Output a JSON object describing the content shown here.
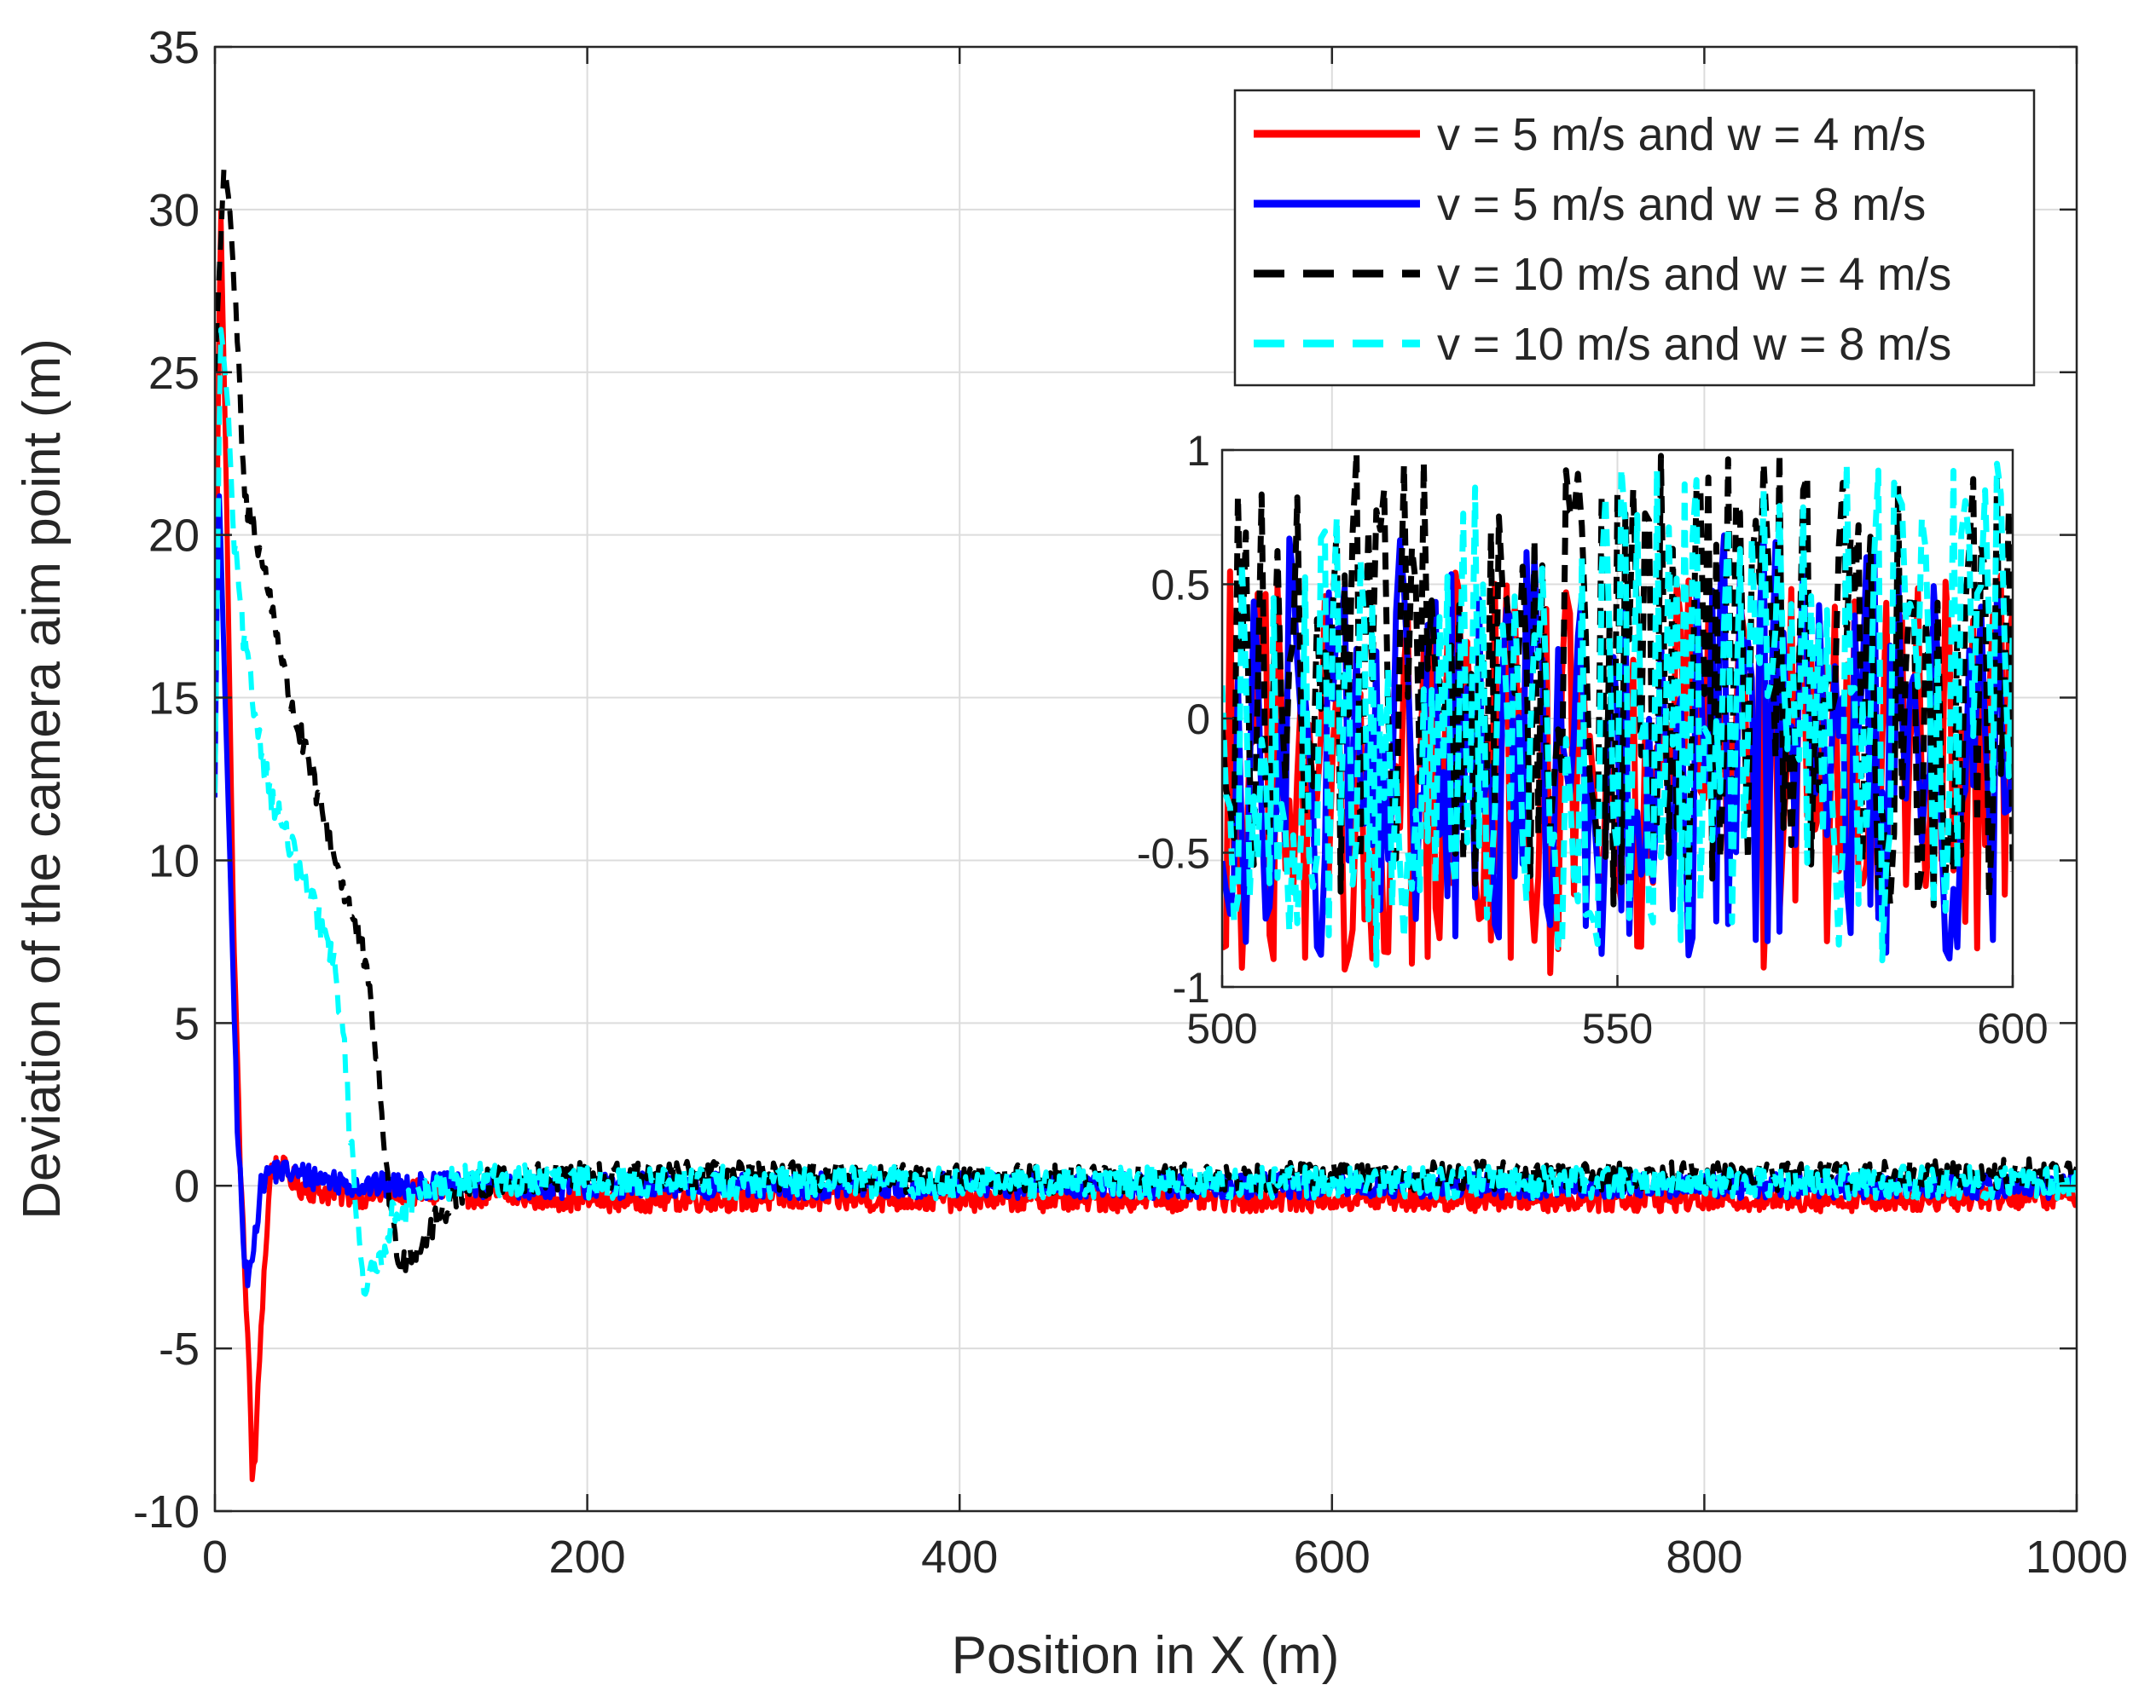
{
  "chart_data": [
    {
      "type": "line",
      "role": "main",
      "xlabel": "Position in X (m)",
      "ylabel": "Deviation of the camera aim point (m)",
      "xlim": [
        0,
        1000
      ],
      "ylim": [
        -10,
        35
      ],
      "xticks": [
        0,
        200,
        400,
        600,
        800,
        1000
      ],
      "yticks": [
        -10,
        -5,
        0,
        5,
        10,
        15,
        20,
        25,
        30,
        35
      ],
      "grid": true,
      "legend_position": "top-right",
      "series": [
        {
          "name": "v = 5 m/s and w = 4 m/s",
          "color": "#ff0000",
          "style": "solid",
          "x": [
            0,
            3,
            6,
            10,
            14,
            18,
            20,
            22,
            25,
            30,
            35,
            45,
            60,
            80,
            100,
            150,
            200,
            300,
            400,
            500,
            600,
            700,
            800,
            900,
            1000
          ],
          "y": [
            14,
            30.5,
            22,
            8,
            0,
            -5,
            -9,
            -8,
            -4,
            0.5,
            0.6,
            0,
            -0.2,
            -0.3,
            -0.2,
            -0.3,
            -0.4,
            -0.4,
            -0.4,
            -0.4,
            -0.4,
            -0.4,
            -0.4,
            -0.4,
            -0.3
          ],
          "noise": 0.4
        },
        {
          "name": "v = 5 m/s and w = 8 m/s",
          "color": "#0000ff",
          "style": "solid",
          "x": [
            0,
            2,
            5,
            8,
            12,
            16,
            18,
            20,
            25,
            30,
            40,
            60,
            80,
            100,
            150,
            200,
            300,
            400,
            500,
            600,
            700,
            800,
            900,
            1000
          ],
          "y": [
            12,
            22,
            16,
            10,
            2,
            -2.5,
            -3,
            -2,
            0,
            0.5,
            0.4,
            0.2,
            0,
            0,
            0,
            0,
            0,
            0,
            0,
            0,
            0,
            0,
            0,
            0
          ],
          "noise": 0.4
        },
        {
          "name": "v = 10 m/s and w = 4 m/s",
          "color": "#000000",
          "style": "dashed",
          "x": [
            0,
            5,
            8,
            12,
            16,
            20,
            30,
            40,
            50,
            60,
            70,
            80,
            85,
            90,
            93,
            96,
            100,
            110,
            120,
            130,
            150,
            200,
            300,
            400,
            500,
            600,
            700,
            800,
            900,
            1000
          ],
          "y": [
            25,
            31.5,
            30,
            26,
            21,
            20.5,
            18,
            15,
            13,
            11,
            9,
            7,
            5,
            2,
            0,
            -1.5,
            -2.3,
            -1.8,
            -1,
            -0.2,
            0.2,
            0.3,
            0.3,
            0.2,
            0.2,
            0.3,
            0.3,
            0.3,
            0.3,
            0.4
          ],
          "noise": 0.45
        },
        {
          "name": "v = 10 m/s and w = 8 m/s",
          "color": "#00ffff",
          "style": "dashed",
          "x": [
            0,
            3,
            7,
            10,
            15,
            20,
            30,
            40,
            50,
            60,
            65,
            70,
            72,
            75,
            80,
            85,
            90,
            95,
            100,
            110,
            120,
            140,
            200,
            300,
            400,
            500,
            600,
            700,
            800,
            900,
            1000
          ],
          "y": [
            12,
            26.5,
            24,
            20,
            17,
            15,
            12,
            10.5,
            9,
            7.5,
            6.5,
            4,
            2,
            0,
            -3,
            -2.8,
            -2,
            -1,
            -0.8,
            -0.3,
            0,
            0.2,
            0.1,
            0.1,
            0.1,
            0.1,
            0.1,
            0.1,
            0.1,
            0.1,
            0.1
          ],
          "noise": 0.5
        }
      ]
    },
    {
      "type": "line",
      "role": "inset",
      "xlim": [
        500,
        600
      ],
      "ylim": [
        -1,
        1
      ],
      "xticks": [
        500,
        550,
        600
      ],
      "yticks": [
        -1,
        -0.5,
        0,
        0.5,
        1
      ],
      "ytick_labels": [
        "-1",
        "-0.5",
        "0",
        "0.5",
        "1"
      ],
      "grid": true,
      "series": [
        {
          "name": "v = 5 m/s and w = 4 m/s",
          "color": "#ff0000",
          "style": "solid",
          "mean": -0.2,
          "noise": 0.75
        },
        {
          "name": "v = 5 m/s and w = 8 m/s",
          "color": "#0000ff",
          "style": "solid",
          "mean": -0.1,
          "noise": 0.8
        },
        {
          "name": "v = 10 m/s and w = 4 m/s",
          "color": "#000000",
          "style": "dashed",
          "mean": 0.15,
          "noise": 0.85
        },
        {
          "name": "v = 10 m/s and w = 8 m/s",
          "color": "#00ffff",
          "style": "dashed",
          "mean": 0.0,
          "noise": 0.95
        }
      ]
    }
  ]
}
